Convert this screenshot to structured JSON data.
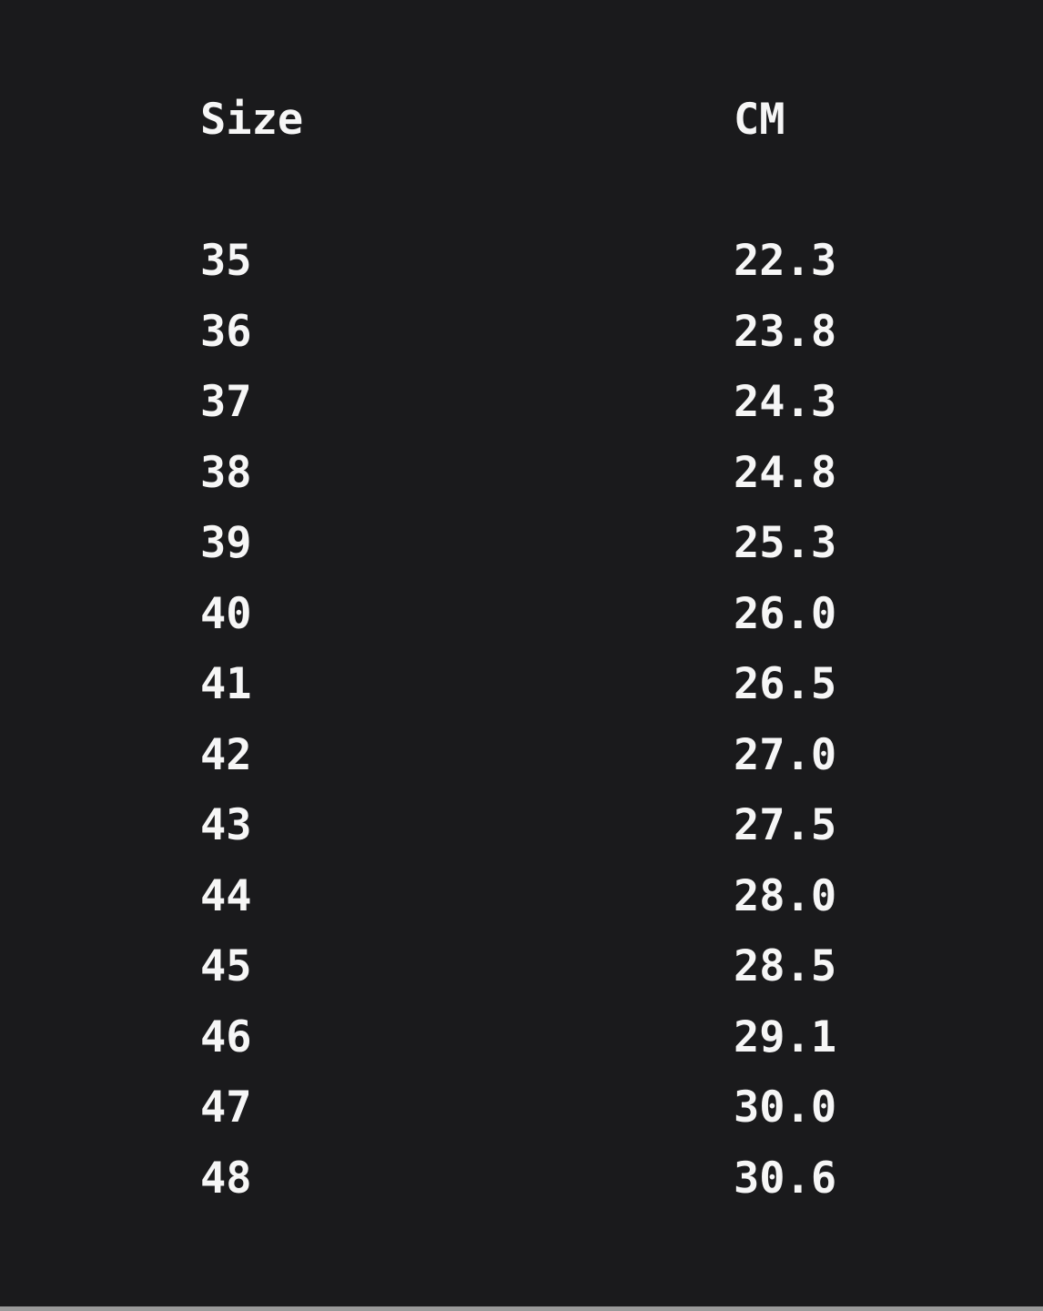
{
  "page": {
    "background_color": "#1a1a1c",
    "text_color": "#f6f6f6"
  },
  "size_chart": {
    "header": {
      "size": "Size",
      "cm": "CM"
    },
    "rows": [
      {
        "size": "35",
        "cm": "22.3"
      },
      {
        "size": "36",
        "cm": "23.8"
      },
      {
        "size": "37",
        "cm": "24.3"
      },
      {
        "size": "38",
        "cm": "24.8"
      },
      {
        "size": "39",
        "cm": "25.3"
      },
      {
        "size": "40",
        "cm": "26.0"
      },
      {
        "size": "41",
        "cm": "26.5"
      },
      {
        "size": "42",
        "cm": "27.0"
      },
      {
        "size": "43",
        "cm": "27.5"
      },
      {
        "size": "44",
        "cm": "28.0"
      },
      {
        "size": "45",
        "cm": "28.5"
      },
      {
        "size": "46",
        "cm": "29.1"
      },
      {
        "size": "47",
        "cm": "30.0"
      },
      {
        "size": "48",
        "cm": "30.6"
      }
    ]
  },
  "scrollbar": {
    "color": "#9a9a9a"
  },
  "chart_data": {
    "type": "table",
    "columns": [
      "Size",
      "CM"
    ],
    "rows": [
      [
        35,
        22.3
      ],
      [
        36,
        23.8
      ],
      [
        37,
        24.3
      ],
      [
        38,
        24.8
      ],
      [
        39,
        25.3
      ],
      [
        40,
        26.0
      ],
      [
        41,
        26.5
      ],
      [
        42,
        27.0
      ],
      [
        43,
        27.5
      ],
      [
        44,
        28.0
      ],
      [
        45,
        28.5
      ],
      [
        46,
        29.1
      ],
      [
        47,
        30.0
      ],
      [
        48,
        30.6
      ]
    ]
  }
}
